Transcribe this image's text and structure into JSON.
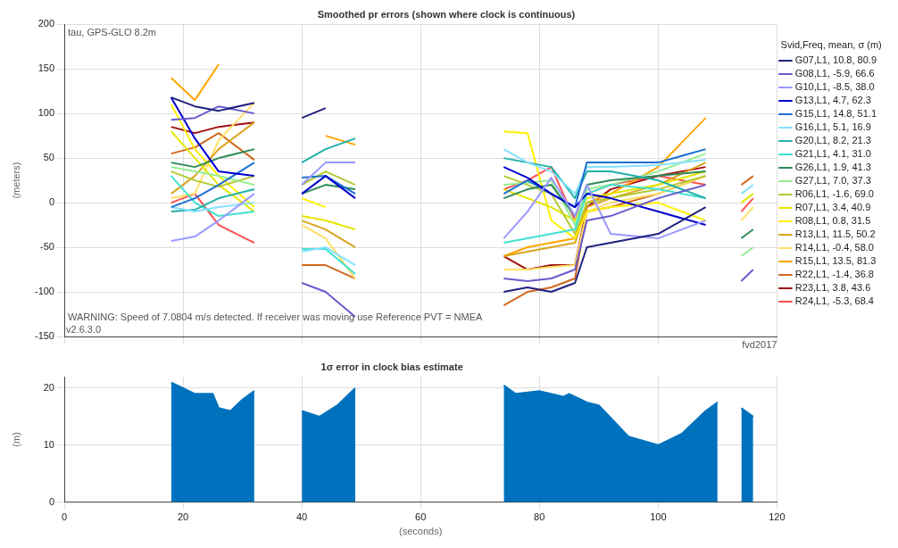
{
  "chart_data": [
    {
      "type": "line",
      "title": "Smoothed pr errors (shown where clock is continuous)",
      "ylabel": "(meters)",
      "legend_title": "Svid,Freq, mean, σ (m)",
      "legend": "right",
      "grid": true,
      "tick_labels": "y",
      "annotations": [
        "tau, GPS-GLO 8.2m",
        "WARNING: Speed of 7.0804 m/s detected. If receiver was moving use Reference PVT = NMEA",
        "v2.6.3.0",
        "fvd2017"
      ],
      "xlim": [
        0,
        120
      ],
      "xticks": [
        0,
        20,
        40,
        60,
        80,
        100,
        120
      ],
      "ylim": [
        -150,
        200
      ],
      "yticks": [
        -150,
        -100,
        -50,
        0,
        50,
        100,
        150,
        200
      ],
      "x": [
        18,
        22,
        26,
        32,
        36,
        40,
        44,
        49,
        60,
        74,
        78,
        82,
        86,
        88,
        92,
        100,
        108,
        111,
        114,
        116
      ],
      "series": [
        {
          "name": "G07,L1, 10.8, 80.9",
          "color": "#202080",
          "values": [
            118,
            108,
            103,
            112,
            null,
            95,
            106,
            null,
            null,
            -100,
            -95,
            -100,
            -90,
            -50,
            -45,
            -35,
            -5,
            null,
            null,
            null
          ]
        },
        {
          "name": "G08,L1, -5.9, 66.6",
          "color": "#6a5acd",
          "values": [
            93,
            95,
            108,
            100,
            null,
            -90,
            -100,
            -128,
            null,
            -85,
            -88,
            -85,
            -75,
            -20,
            -15,
            5,
            20,
            null,
            -88,
            -75
          ]
        },
        {
          "name": "G10,L1, -8.5, 38.0",
          "color": "#9999ff",
          "values": [
            -43,
            -38,
            -20,
            10,
            null,
            20,
            45,
            45,
            null,
            -40,
            -10,
            28,
            -15,
            20,
            -35,
            -40,
            -20,
            null,
            null,
            null
          ]
        },
        {
          "name": "G13,L1, 4.7, 62.3",
          "color": "#0000cd",
          "values": [
            118,
            72,
            35,
            30,
            null,
            10,
            30,
            5,
            null,
            40,
            28,
            10,
            -5,
            10,
            5,
            -10,
            -25,
            null,
            null,
            null
          ]
        },
        {
          "name": "G15,L1, 14.8, 51.1",
          "color": "#1e6fd0",
          "values": [
            -5,
            5,
            20,
            45,
            null,
            28,
            30,
            10,
            null,
            10,
            25,
            10,
            -5,
            45,
            45,
            45,
            60,
            null,
            null,
            null
          ]
        },
        {
          "name": "G16,L1, 5.1, 16.9",
          "color": "#87e0ff",
          "values": [
            -5,
            -10,
            -5,
            0,
            null,
            -55,
            -50,
            -70,
            null,
            60,
            45,
            35,
            10,
            40,
            40,
            42,
            48,
            null,
            10,
            20
          ]
        },
        {
          "name": "G20,L1, 8.2, 21.3",
          "color": "#20b2aa",
          "values": [
            -10,
            -8,
            5,
            15,
            null,
            45,
            60,
            72,
            null,
            50,
            45,
            40,
            5,
            35,
            35,
            25,
            5,
            null,
            null,
            null
          ]
        },
        {
          "name": "G21,L1, 4.1, 31.0",
          "color": "#40e0d0",
          "values": [
            30,
            0,
            -15,
            -10,
            null,
            -52,
            -52,
            -80,
            null,
            -45,
            -40,
            -35,
            -30,
            10,
            20,
            15,
            5,
            null,
            null,
            null
          ]
        },
        {
          "name": "G26,L1, 1.9, 41.3",
          "color": "#2e8b57",
          "values": [
            45,
            40,
            50,
            60,
            null,
            10,
            20,
            15,
            null,
            5,
            15,
            20,
            -15,
            20,
            25,
            30,
            35,
            null,
            -40,
            -30
          ]
        },
        {
          "name": "G27,L1, 7.0, 37.3",
          "color": "#90ee90",
          "values": [
            40,
            35,
            30,
            20,
            null,
            null,
            null,
            null,
            null,
            20,
            22,
            25,
            -25,
            15,
            20,
            35,
            55,
            null,
            -60,
            -50
          ]
        },
        {
          "name": "R06,L1, -1.6, 69.0",
          "color": "#b5c832",
          "values": [
            35,
            25,
            18,
            30,
            null,
            20,
            35,
            20,
            null,
            30,
            20,
            10,
            -35,
            0,
            5,
            15,
            30,
            null,
            null,
            null
          ]
        },
        {
          "name": "R07,L1, 3.4, 40.9",
          "color": "#e6e600",
          "values": [
            80,
            50,
            20,
            -10,
            null,
            -15,
            -20,
            -30,
            null,
            15,
            5,
            -5,
            -20,
            5,
            10,
            20,
            35,
            null,
            0,
            10
          ]
        },
        {
          "name": "R08,L1, 0.8, 31.5",
          "color": "#fff000",
          "values": [
            110,
            60,
            30,
            -5,
            null,
            5,
            -5,
            null,
            null,
            80,
            78,
            -20,
            -40,
            -10,
            -5,
            0,
            -20,
            null,
            null,
            null
          ]
        },
        {
          "name": "R13,L1, 11.5, 50.2",
          "color": "#daa520",
          "values": [
            10,
            30,
            60,
            90,
            null,
            -20,
            -30,
            -50,
            null,
            -60,
            -55,
            -50,
            -45,
            -5,
            5,
            20,
            45,
            null,
            null,
            null
          ]
        },
        {
          "name": "R14,L1, -0.4, 58.0",
          "color": "#ffe066",
          "values": [
            5,
            10,
            70,
            112,
            null,
            -25,
            -40,
            -85,
            null,
            -75,
            -75,
            -72,
            -70,
            -10,
            0,
            10,
            30,
            null,
            -20,
            -5
          ]
        },
        {
          "name": "R15,L1, 13.5, 81.3",
          "color": "#ffa500",
          "values": [
            140,
            115,
            155,
            null,
            null,
            null,
            75,
            65,
            null,
            -60,
            -50,
            -45,
            -40,
            0,
            10,
            40,
            95,
            null,
            null,
            null
          ]
        },
        {
          "name": "R22,L1, -1.4, 36.8",
          "color": "#d2691e",
          "values": [
            55,
            62,
            78,
            48,
            null,
            -70,
            -70,
            -85,
            null,
            -115,
            -100,
            -95,
            -85,
            -10,
            -5,
            10,
            30,
            null,
            20,
            30
          ]
        },
        {
          "name": "R23,L1, 3.8, 43.6",
          "color": "#a01010",
          "values": [
            85,
            78,
            85,
            90,
            null,
            null,
            null,
            null,
            null,
            -60,
            -75,
            -70,
            -70,
            -5,
            15,
            30,
            40,
            null,
            null,
            null
          ]
        },
        {
          "name": "R24,L1, -5.3, 68.4",
          "color": "#ff5050",
          "values": [
            0,
            10,
            -25,
            -45,
            null,
            null,
            null,
            null,
            null,
            15,
            25,
            40,
            -20,
            10,
            20,
            30,
            20,
            null,
            -10,
            5
          ]
        }
      ]
    },
    {
      "type": "area",
      "title": "1σ error in clock bias estimate",
      "xlabel": "(seconds)",
      "ylabel": "(m)",
      "grid": true,
      "legend": false,
      "xlim": [
        0,
        120
      ],
      "xticks": [
        0,
        20,
        40,
        60,
        80,
        100,
        120
      ],
      "ylim": [
        0,
        22
      ],
      "yticks": [
        0,
        10,
        20
      ],
      "x": [
        18,
        20,
        22,
        25,
        26,
        28,
        30,
        32,
        36,
        40,
        43,
        46,
        48,
        49,
        60,
        74,
        76,
        80,
        84,
        85,
        88,
        90,
        95,
        100,
        104,
        108,
        110,
        112,
        114,
        116
      ],
      "series": [
        {
          "color": "#0072bd",
          "values": [
            21,
            20,
            19,
            19,
            16.5,
            16,
            18,
            19.5,
            null,
            16,
            15,
            17,
            19,
            20,
            null,
            20.5,
            19,
            19.5,
            18.5,
            19,
            17.5,
            17,
            11.5,
            10,
            12,
            16,
            17.5,
            null,
            16.5,
            15
          ]
        }
      ]
    }
  ]
}
